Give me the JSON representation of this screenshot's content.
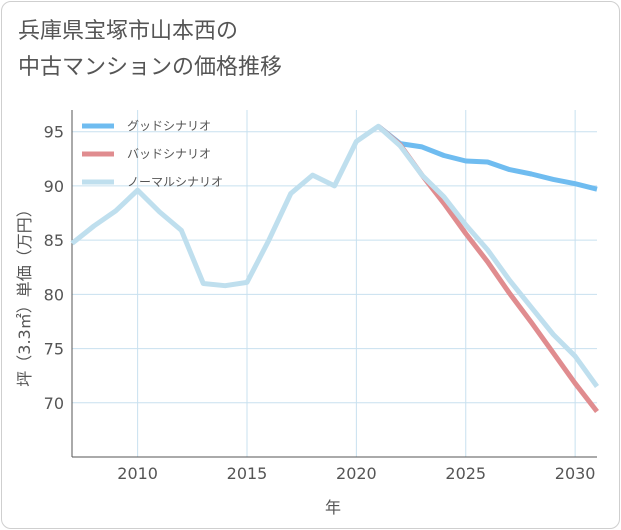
{
  "title": {
    "line1": "兵庫県宝塚市山本西の",
    "line2": "中古マンションの価格推移"
  },
  "chart_data": {
    "type": "line",
    "xlabel": "年",
    "ylabel": "坪（3.3㎡）単価（万円）",
    "xlim": [
      2007,
      2031
    ],
    "ylim": [
      65,
      97
    ],
    "xticks": [
      2010,
      2015,
      2020,
      2025,
      2030
    ],
    "yticks": [
      70,
      75,
      80,
      85,
      90,
      95
    ],
    "grid": true,
    "legend_position": "top-left",
    "series": [
      {
        "name": "グッドシナリオ",
        "color": "#6fbcf0",
        "x": [
          2021,
          2022,
          2023,
          2024,
          2025,
          2026,
          2027,
          2028,
          2029,
          2030,
          2031
        ],
        "y": [
          95.5,
          93.9,
          93.6,
          92.8,
          92.3,
          92.2,
          91.5,
          91.1,
          90.6,
          90.2,
          89.7
        ]
      },
      {
        "name": "バッドシナリオ",
        "color": "#e08c8f",
        "x": [
          2021,
          2022,
          2023,
          2024,
          2025,
          2026,
          2027,
          2028,
          2029,
          2030,
          2031
        ],
        "y": [
          95.5,
          93.8,
          91.0,
          88.4,
          85.6,
          83.0,
          80.1,
          77.4,
          74.6,
          71.8,
          69.2
        ]
      },
      {
        "name": "ノーマルシナリオ",
        "color": "#bfdfee",
        "x": [
          2007,
          2008,
          2009,
          2010,
          2011,
          2012,
          2013,
          2014,
          2015,
          2016,
          2017,
          2018,
          2019,
          2020,
          2021,
          2022,
          2023,
          2024,
          2025,
          2026,
          2027,
          2028,
          2029,
          2030,
          2031
        ],
        "y": [
          84.7,
          86.3,
          87.7,
          89.6,
          87.6,
          85.9,
          81.0,
          80.8,
          81.1,
          85.0,
          89.3,
          91.0,
          90.0,
          94.1,
          95.5,
          93.7,
          91.0,
          89.0,
          86.4,
          84.1,
          81.3,
          78.8,
          76.3,
          74.3,
          71.5
        ]
      }
    ]
  }
}
